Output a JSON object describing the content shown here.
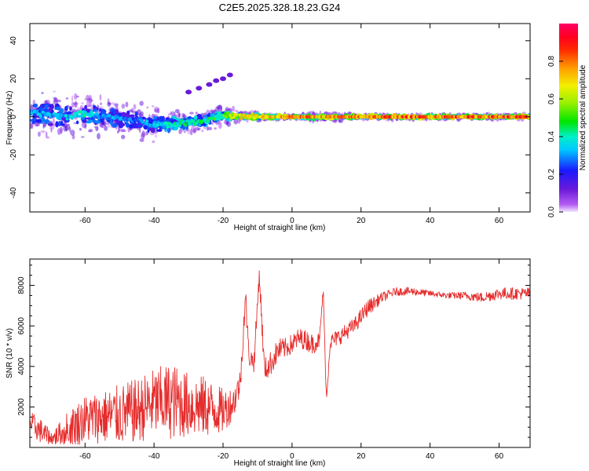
{
  "title": "C2E5.2025.328.18.23.G24",
  "chart_data": [
    {
      "type": "heatmap",
      "xlabel": "Height of straight line (km)",
      "ylabel": "Frequency (Hz)",
      "xlim": [
        -76,
        69
      ],
      "ylim": [
        -50,
        49
      ],
      "xticks": [
        -60,
        -40,
        -20,
        0,
        20,
        40,
        60
      ],
      "yticks": [
        -40,
        -20,
        0,
        20,
        40
      ],
      "colorbar": {
        "label": "Normalized spectral amplitude",
        "ticks": [
          0.0,
          0.2,
          0.4,
          0.6,
          0.8
        ],
        "range": [
          0,
          1
        ]
      },
      "ridge": {
        "x": [
          -75,
          -70,
          -65,
          -60,
          -55,
          -50,
          -45,
          -40,
          -35,
          -30,
          -25,
          -20,
          -15,
          -10,
          -5,
          0,
          5,
          10,
          15,
          20,
          30,
          40,
          50,
          60,
          68
        ],
        "freq": [
          2,
          1,
          0,
          2,
          0,
          -1,
          -2,
          -4,
          -4,
          -3,
          -2,
          1,
          0,
          0,
          0,
          0,
          0,
          0,
          0,
          0,
          0,
          0,
          0,
          0,
          0
        ],
        "amplitude": [
          0.4,
          0.35,
          0.4,
          0.45,
          0.35,
          0.35,
          0.3,
          0.4,
          0.45,
          0.5,
          0.5,
          0.55,
          0.75,
          0.8,
          0.8,
          0.95,
          0.9,
          0.85,
          0.9,
          0.9,
          0.95,
          0.95,
          0.95,
          0.95,
          0.95
        ]
      },
      "spread": {
        "x": [
          -75,
          -70,
          -65,
          -60,
          -55,
          -50,
          -45,
          -40,
          -35,
          -30,
          -25,
          -20,
          -15,
          -10,
          -5,
          0,
          10,
          20,
          40,
          68
        ],
        "halfwidth": [
          10,
          12,
          10,
          10,
          10,
          8,
          8,
          8,
          7,
          6,
          5,
          5,
          3,
          2,
          1.5,
          1,
          2,
          1,
          1,
          1
        ]
      },
      "branch": {
        "x": [
          -30,
          -27,
          -24,
          -22,
          -20,
          -18
        ],
        "freq": [
          13,
          15,
          17,
          19,
          20,
          22
        ]
      }
    },
    {
      "type": "line",
      "xlabel": "Height of straight line (km)",
      "ylabel": "SNR (10 * v/v)",
      "xlim": [
        -76,
        69
      ],
      "ylim": [
        0,
        9300
      ],
      "xticks": [
        -60,
        -40,
        -20,
        0,
        20,
        40,
        60
      ],
      "yticks": [
        2000,
        4000,
        6000,
        8000
      ],
      "series": [
        {
          "name": "SNR",
          "color": "#e52d2d",
          "x": [
            -76,
            -72,
            -70,
            -68,
            -65,
            -60,
            -55,
            -50,
            -45,
            -40,
            -35,
            -30,
            -25,
            -20,
            -17,
            -15,
            -13.5,
            -12.5,
            -11,
            -9.5,
            -8,
            -6,
            -4,
            -2,
            0,
            2,
            4,
            6,
            8,
            9,
            9.5,
            10,
            11,
            14,
            18,
            22,
            26,
            30,
            35,
            40,
            45,
            50,
            55,
            60,
            65,
            69
          ],
          "y": [
            1200,
            700,
            400,
            600,
            900,
            1400,
            1500,
            1600,
            1800,
            2200,
            2300,
            2100,
            2000,
            1800,
            2200,
            3200,
            7500,
            4500,
            4200,
            8600,
            3800,
            4200,
            4800,
            4900,
            5100,
            5400,
            5300,
            5100,
            5300,
            7800,
            5000,
            2300,
            5200,
            5500,
            6000,
            6900,
            7400,
            7700,
            7700,
            7600,
            7500,
            7500,
            7400,
            7600,
            7600,
            7600
          ],
          "noise": [
            600,
            600,
            400,
            500,
            900,
            1200,
            1300,
            1500,
            1600,
            1700,
            1900,
            1600,
            1500,
            1100,
            800,
            700,
            600,
            500,
            500,
            500,
            600,
            600,
            600,
            500,
            500,
            500,
            500,
            500,
            400,
            400,
            300,
            200,
            400,
            400,
            400,
            400,
            250,
            200,
            200,
            150,
            150,
            200,
            250,
            300,
            300,
            300
          ]
        }
      ]
    }
  ]
}
